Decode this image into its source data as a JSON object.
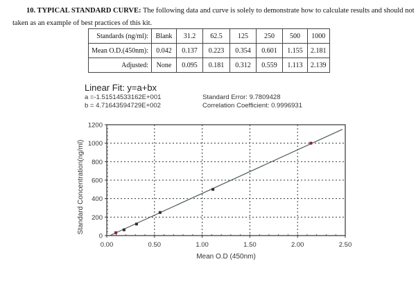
{
  "heading": {
    "bold": "10. TYPICAL STANDARD CURVE:",
    "line1_rest": " The following data and curve is solely to demonstrate how to calculate results and should not be",
    "line2": "taken as an example of best practices of this kit."
  },
  "table": {
    "rows": [
      {
        "label": "Standards (ng/ml):",
        "values": [
          "Blank",
          "31.2",
          "62.5",
          "125",
          "250",
          "500",
          "1000"
        ]
      },
      {
        "label": "Mean O.D.(450nm):",
        "values": [
          "0.042",
          "0.137",
          "0.223",
          "0.354",
          "0.601",
          "1.155",
          "2.181"
        ]
      },
      {
        "label": "Adjusted:",
        "values": [
          "None",
          "0.095",
          "0.181",
          "0.312",
          "0.559",
          "1.113",
          "2.139"
        ]
      }
    ]
  },
  "fit": {
    "title": "Linear Fit: y=a+bx",
    "a": "a =-1.51514533162E+001",
    "b": "b = 4.71643594729E+002",
    "std_error": "Standard Error: 9.7809428",
    "correlation": "Correlation Coefficient: 0.9996931"
  },
  "chart_data": {
    "type": "scatter",
    "title": "Linear Fit: y=a+bx",
    "xlabel": "Mean O.D (450nm)",
    "ylabel": "Standard Concentration(ng/ml)",
    "xlim": [
      0,
      2.5
    ],
    "ylim": [
      0,
      1200
    ],
    "x_ticks": [
      "0.00",
      "0.50",
      "1.00",
      "1.50",
      "2.00",
      "2.50"
    ],
    "y_ticks": [
      "0",
      "200",
      "400",
      "600",
      "800",
      "1000",
      "1200"
    ],
    "grid": true,
    "series": [
      {
        "name": "Standards",
        "x": [
          0.095,
          0.181,
          0.312,
          0.559,
          1.113,
          2.139
        ],
        "y": [
          31.2,
          62.5,
          125,
          250,
          500,
          1000
        ]
      },
      {
        "name": "Linear fit",
        "intercept": -15.1514533162,
        "slope": 471.643594729,
        "x_range": [
          0.032,
          2.47
        ]
      }
    ],
    "annotations": [
      "Standard Error: 9.7809428",
      "Correlation Coefficient: 0.9996931"
    ]
  }
}
